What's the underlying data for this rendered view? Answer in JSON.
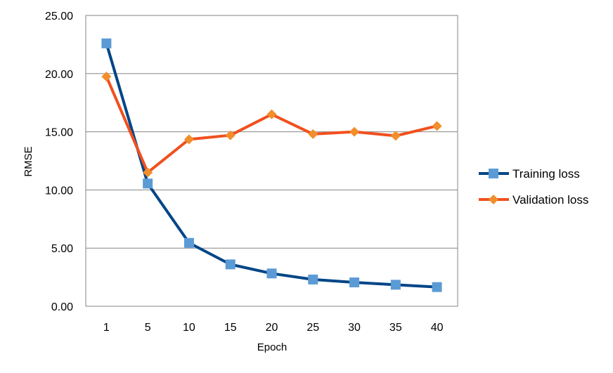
{
  "chart_data": {
    "type": "line",
    "title": "",
    "xlabel": "Epoch",
    "ylabel": "RMSE",
    "categories": [
      "1",
      "5",
      "10",
      "15",
      "20",
      "25",
      "30",
      "35",
      "40"
    ],
    "ylim": [
      0,
      25
    ],
    "y_ticks": [
      "0.00",
      "5.00",
      "10.00",
      "15.00",
      "20.00",
      "25.00"
    ],
    "grid": true,
    "legend_position": "right",
    "series": [
      {
        "name": "Training loss",
        "color": "#004586",
        "marker_color": "#5B9BD5",
        "marker": "square",
        "values": [
          22.6,
          10.55,
          5.45,
          3.6,
          2.82,
          2.3,
          2.05,
          1.85,
          1.65
        ]
      },
      {
        "name": "Validation loss",
        "color": "#F0501E",
        "marker_color": "#F28E2B",
        "marker": "diamond",
        "values": [
          19.75,
          11.5,
          14.35,
          14.7,
          16.5,
          14.8,
          15.0,
          14.65,
          15.5
        ]
      }
    ]
  }
}
